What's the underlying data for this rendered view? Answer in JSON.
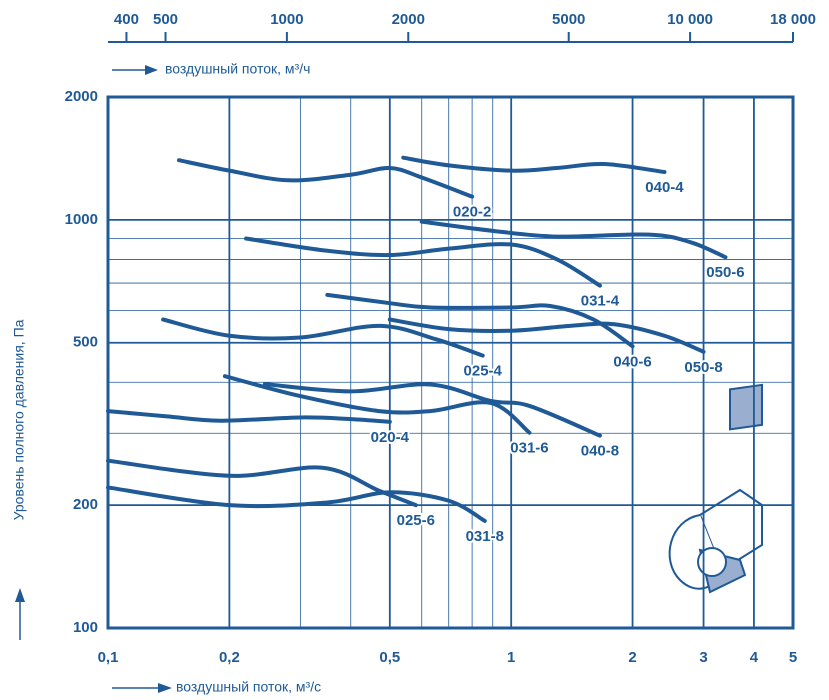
{
  "chart_data": {
    "type": "line",
    "xlabel": "воздушный поток, м³/с",
    "x2label": "воздушный поток, м³/ч",
    "ylabel": "Уровень полного давления, Па",
    "xscale": "log",
    "yscale": "log",
    "grid": true,
    "color": "#1f5a96",
    "xlim": [
      0.1,
      5
    ],
    "xticks": [
      {
        "value": 0.1,
        "label": "0,1"
      },
      {
        "value": 0.2,
        "label": "0,2"
      },
      {
        "value": 0.5,
        "label": "0,5"
      },
      1,
      2,
      3,
      4,
      5
    ],
    "x2lim": [
      360,
      18000
    ],
    "x2ticks": [
      400,
      500,
      1000,
      2000,
      5000,
      {
        "value": 10000,
        "label": "10 000"
      },
      {
        "value": 18000,
        "label": "18 000"
      }
    ],
    "ylim": [
      100,
      2000
    ],
    "yticks": [
      100,
      200,
      500,
      1000,
      2000
    ],
    "series": [
      {
        "name": "020-2",
        "x": [
          0.15,
          0.2,
          0.28,
          0.4,
          0.5,
          0.6,
          0.8
        ],
        "values": [
          1400,
          1320,
          1250,
          1290,
          1340,
          1270,
          1140
        ]
      },
      {
        "name": "040-4",
        "x": [
          0.54,
          0.7,
          1,
          1.3,
          1.7,
          2.4
        ],
        "values": [
          1420,
          1360,
          1320,
          1340,
          1370,
          1310
        ]
      },
      {
        "name": "031-4",
        "x": [
          0.22,
          0.35,
          0.5,
          0.7,
          1,
          1.3,
          1.66
        ],
        "values": [
          900,
          840,
          820,
          850,
          870,
          800,
          690
        ]
      },
      {
        "name": "050-6",
        "x": [
          0.6,
          0.9,
          1.3,
          2.2,
          2.8,
          3.4
        ],
        "values": [
          990,
          940,
          910,
          920,
          880,
          810
        ]
      },
      {
        "name": "025-4",
        "x": [
          0.137,
          0.2,
          0.3,
          0.47,
          0.65,
          0.85
        ],
        "values": [
          570,
          520,
          515,
          550,
          510,
          465
        ]
      },
      {
        "name": "040-6",
        "x": [
          0.35,
          0.5,
          0.63,
          1,
          1.25,
          1.6,
          2.0
        ],
        "values": [
          655,
          625,
          610,
          610,
          615,
          570,
          490
        ]
      },
      {
        "name": "050-8",
        "x": [
          0.5,
          0.7,
          1,
          1.4,
          1.8,
          2.4,
          3.0
        ],
        "values": [
          570,
          540,
          535,
          550,
          555,
          520,
          475
        ]
      },
      {
        "name": "020-4",
        "x": [
          0.1,
          0.14,
          0.19,
          0.3,
          0.4,
          0.5
        ],
        "values": [
          340,
          330,
          322,
          328,
          325,
          320
        ]
      },
      {
        "name": "031-6",
        "x": [
          0.195,
          0.3,
          0.47,
          0.63,
          0.89,
          1.11
        ],
        "values": [
          414,
          370,
          340,
          340,
          356,
          301
        ]
      },
      {
        "name": "040-8",
        "x": [
          0.245,
          0.4,
          0.63,
          0.89,
          1.11,
          1.66
        ],
        "values": [
          396,
          380,
          395,
          360,
          350,
          296
        ]
      },
      {
        "name": "025-6",
        "x": [
          0.1,
          0.2,
          0.34,
          0.47,
          0.58
        ],
        "values": [
          257,
          236,
          247,
          217,
          200
        ]
      },
      {
        "name": "031-8",
        "x": [
          0.1,
          0.2,
          0.35,
          0.5,
          0.7,
          0.86
        ],
        "values": [
          221,
          200,
          203,
          215,
          205,
          183
        ]
      }
    ]
  }
}
